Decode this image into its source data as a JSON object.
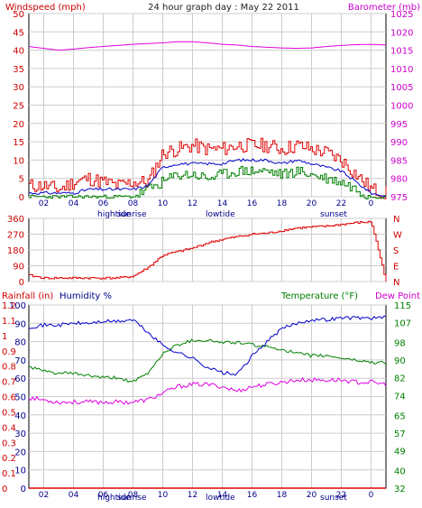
{
  "header": {
    "left_label": "Windspeed (mph)",
    "title": "24 hour graph day : May 22 2011",
    "right_label": "Barometer (mb)"
  },
  "bottom_header": {
    "rainfall_label": "Rainfall (in)",
    "humidity_label": "Humidity %",
    "temperature_label": "Temperature (°F)",
    "dewpoint_label": "Dew Point"
  },
  "events": {
    "hightide": "hightide",
    "sunrise": "sunrise",
    "lowtide": "lowtide",
    "sunset": "sunset"
  },
  "colors": {
    "windspeed": "#e00000",
    "gust": "#e00000",
    "wind_avg": "#0000cc",
    "wind_low": "#008000",
    "barometer": "#e000e0",
    "direction": "#e00000",
    "humidity": "#0000cc",
    "temperature": "#008000",
    "dewpoint": "#e000e0",
    "rainfall": "#e00000",
    "grid": "#cccccc",
    "axis_text_red": "#cc0000",
    "axis_text_blue": "#00008b",
    "axis_text_green": "#008000",
    "axis_text_magenta": "#cc00cc"
  },
  "chart_data": [
    {
      "type": "line",
      "title": "24 hour graph day : May 22 2011",
      "ylabel": "Windspeed (mph)",
      "y2label": "Barometer (mb)",
      "x_tick_labels": [
        "02",
        "04",
        "06",
        "08",
        "10",
        "12",
        "14",
        "16",
        "18",
        "20",
        "22",
        "0"
      ],
      "ylim": [
        0,
        50
      ],
      "y_ticks": [
        0,
        5,
        10,
        15,
        20,
        25,
        30,
        35,
        40,
        45,
        50
      ],
      "y2lim": [
        975,
        1025
      ],
      "y2_ticks": [
        975,
        980,
        985,
        990,
        995,
        1000,
        1005,
        1010,
        1015,
        1020,
        1025
      ],
      "grid": true,
      "series": [
        {
          "key": "gust",
          "values": [
            3,
            3,
            2,
            4,
            5,
            4,
            3,
            4,
            4,
            12,
            13,
            14,
            13,
            13,
            14,
            14,
            14,
            13,
            14,
            13,
            12,
            10,
            6,
            2,
            1
          ]
        },
        {
          "key": "avg",
          "values": [
            1,
            1,
            1,
            1,
            2,
            2,
            2,
            2,
            3,
            8,
            9,
            9,
            9,
            9,
            10,
            10,
            10,
            9,
            10,
            9,
            8,
            7,
            4,
            1,
            0
          ]
        },
        {
          "key": "low",
          "values": [
            0,
            0,
            0,
            0,
            0,
            0,
            0,
            0,
            2,
            4,
            6,
            6,
            5,
            6,
            7,
            7,
            7,
            6,
            7,
            6,
            5,
            4,
            2,
            0,
            0
          ]
        },
        {
          "key": "barometer",
          "values": [
            1016,
            1015.5,
            1015,
            1015.3,
            1015.7,
            1016,
            1016.3,
            1016.6,
            1016.8,
            1017,
            1017.3,
            1017.3,
            1017,
            1016.6,
            1016.4,
            1016,
            1015.8,
            1015.6,
            1015.5,
            1015.6,
            1016,
            1016.3,
            1016.5,
            1016.6,
            1016.4
          ]
        }
      ]
    },
    {
      "type": "line",
      "ylabel": "Wind direction",
      "x_tick_labels": [
        "02",
        "04",
        "06",
        "08",
        "10",
        "12",
        "14",
        "16",
        "18",
        "20",
        "22",
        "0"
      ],
      "ylim": [
        0,
        360
      ],
      "y_ticks": [
        0,
        90,
        180,
        270,
        360
      ],
      "y2_labels": [
        "N",
        "W",
        "S",
        "E",
        "N"
      ],
      "grid": true,
      "series": [
        {
          "key": "direction",
          "values": [
            35,
            20,
            20,
            20,
            20,
            20,
            20,
            30,
            80,
            150,
            170,
            190,
            220,
            240,
            255,
            270,
            275,
            290,
            305,
            310,
            315,
            325,
            335,
            340,
            0
          ]
        }
      ]
    },
    {
      "type": "line",
      "ylabel": "Rainfall (in)",
      "y2label": "Temperature (°F)",
      "x_tick_labels": [
        "02",
        "04",
        "06",
        "08",
        "10",
        "12",
        "14",
        "16",
        "18",
        "20",
        "22",
        "0"
      ],
      "rain_ticks": [
        0,
        0.1,
        0.2,
        0.3,
        0.4,
        0.5,
        0.6,
        0.7,
        0.8,
        0.9,
        1,
        1.1,
        1.2
      ],
      "humidity_ticks": [
        0,
        10,
        20,
        30,
        40,
        50,
        60,
        70,
        80,
        90,
        100
      ],
      "temp_ticks": [
        32,
        40,
        49,
        57,
        65,
        74,
        82,
        90,
        98,
        107,
        115
      ],
      "grid": true,
      "series": [
        {
          "key": "humidity",
          "values": [
            88,
            89,
            89,
            90,
            90,
            91,
            91,
            92,
            85,
            78,
            74,
            71,
            66,
            63,
            62,
            72,
            80,
            87,
            90,
            92,
            92,
            93,
            93,
            93,
            93
          ]
        },
        {
          "key": "temperature",
          "values": [
            87,
            85,
            84,
            84,
            83,
            82,
            82,
            80,
            84,
            93,
            97,
            99,
            99,
            98,
            98,
            97,
            96,
            95,
            93,
            92,
            92,
            91,
            90,
            89,
            89
          ]
        },
        {
          "key": "dewpoint",
          "values": [
            73,
            72,
            71,
            71,
            71,
            71,
            71,
            71,
            72,
            75,
            78,
            79,
            79,
            78,
            76,
            78,
            79,
            80,
            81,
            81,
            81,
            81,
            80,
            80,
            79
          ]
        },
        {
          "key": "rainfall",
          "values": [
            0,
            0,
            0,
            0,
            0,
            0,
            0,
            0,
            0,
            0,
            0,
            0,
            0,
            0,
            0,
            0,
            0,
            0,
            0,
            0,
            0,
            0,
            0,
            0,
            0
          ]
        }
      ]
    }
  ]
}
